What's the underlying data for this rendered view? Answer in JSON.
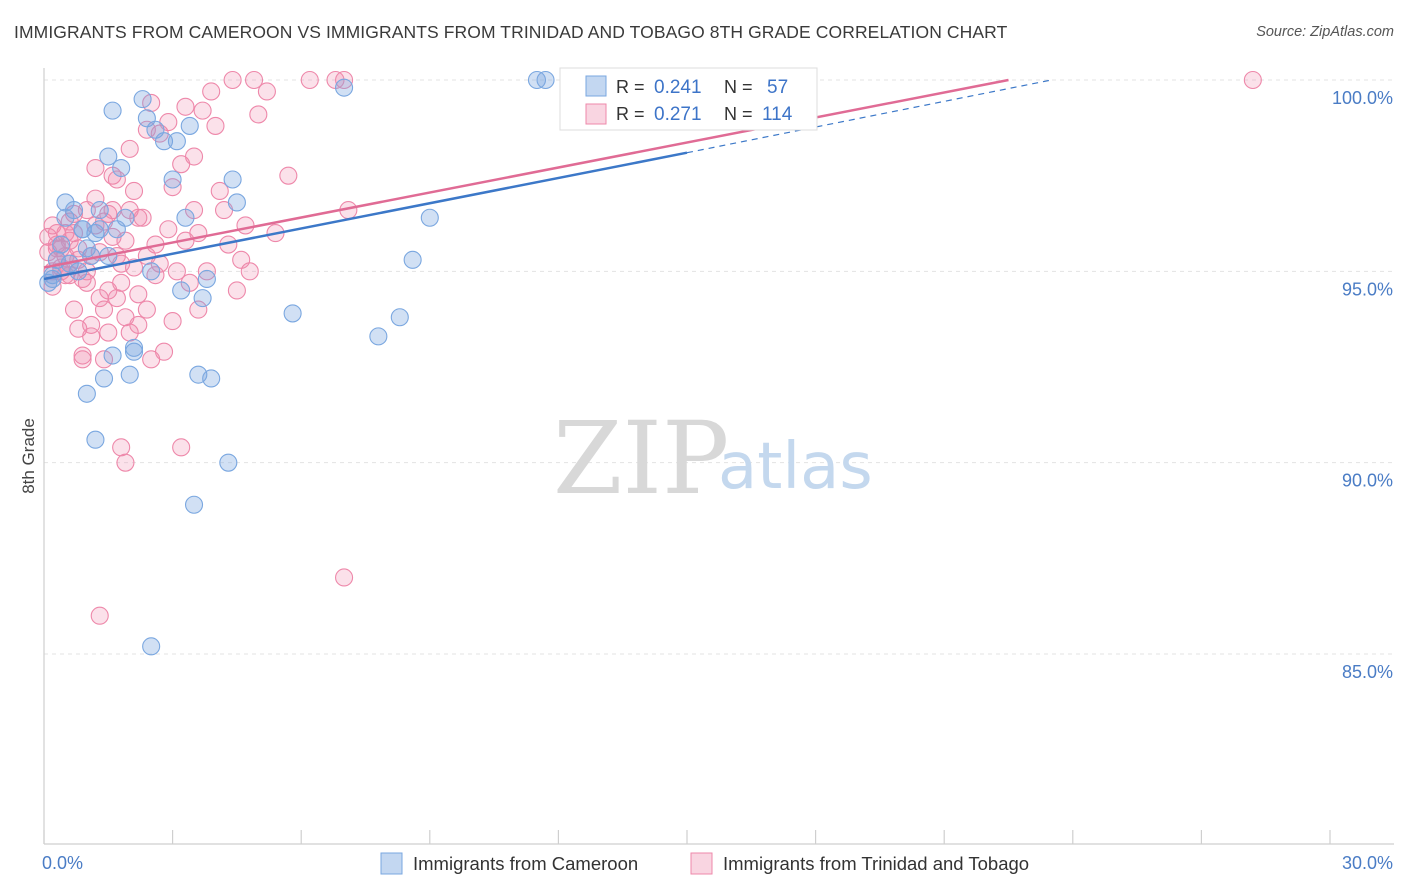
{
  "title": "IMMIGRANTS FROM CAMEROON VS IMMIGRANTS FROM TRINIDAD AND TOBAGO 8TH GRADE CORRELATION CHART",
  "source": "Source: ZipAtlas.com",
  "watermark": {
    "zip": "ZIP",
    "atlas": "atlas"
  },
  "colors": {
    "blue": "#7aa7e0",
    "blue_fill": "rgba(122,167,224,0.35)",
    "blue_line": "#3c78c8",
    "pink": "#ee88aa",
    "pink_fill": "rgba(238,136,170,0.25)",
    "pink_line": "#e06b95",
    "grid": "#e3e3e3",
    "tick_label": "#4a7cc5"
  },
  "legend": {
    "r_label": "R =",
    "n_label": "N =",
    "series": [
      {
        "r": "0.241",
        "n": "57"
      },
      {
        "r": "0.271",
        "n": "114"
      }
    ]
  },
  "chart_data": {
    "type": "scatter",
    "title": "IMMIGRANTS FROM CAMEROON VS IMMIGRANTS FROM TRINIDAD AND TOBAGO 8TH GRADE CORRELATION CHART",
    "xlabel": "",
    "ylabel": "8th Grade",
    "xlim": [
      0,
      30
    ],
    "ylim": [
      80.5,
      100.5
    ],
    "x_tick_labels": [
      "0.0%",
      "30.0%"
    ],
    "y_ticks": [
      85,
      90,
      95,
      100
    ],
    "y_tick_labels": [
      "85.0%",
      "90.0%",
      "95.0%",
      "100.0%"
    ],
    "grid": "horizontal dashed",
    "series": [
      {
        "name": "Immigrants from Cameroon",
        "trend": {
          "x0": 0,
          "y0": 94.8,
          "x1": 15.0,
          "y1": 98.1,
          "dash_to_x": 23.5,
          "dash_to_y": 100.0
        },
        "points": [
          [
            0.1,
            94.7
          ],
          [
            0.2,
            94.9
          ],
          [
            0.3,
            95.3
          ],
          [
            0.4,
            95.7
          ],
          [
            0.5,
            96.4
          ],
          [
            0.5,
            96.8
          ],
          [
            0.6,
            95.2
          ],
          [
            0.7,
            96.6
          ],
          [
            0.8,
            95.0
          ],
          [
            0.9,
            96.1
          ],
          [
            1.0,
            95.6
          ],
          [
            1.1,
            95.4
          ],
          [
            1.2,
            96.0
          ],
          [
            1.3,
            96.1
          ],
          [
            1.4,
            92.2
          ],
          [
            1.5,
            98.0
          ],
          [
            1.6,
            92.8
          ],
          [
            1.7,
            96.1
          ],
          [
            1.8,
            97.7
          ],
          [
            1.9,
            96.4
          ],
          [
            2.0,
            92.3
          ],
          [
            2.1,
            92.9
          ],
          [
            2.3,
            99.5
          ],
          [
            2.4,
            99.0
          ],
          [
            2.5,
            95.0
          ],
          [
            2.6,
            98.7
          ],
          [
            2.8,
            98.4
          ],
          [
            3.0,
            97.4
          ],
          [
            3.1,
            98.4
          ],
          [
            3.2,
            94.5
          ],
          [
            3.3,
            96.4
          ],
          [
            3.4,
            98.8
          ],
          [
            3.6,
            92.3
          ],
          [
            3.7,
            94.3
          ],
          [
            3.8,
            94.8
          ],
          [
            3.9,
            92.2
          ],
          [
            4.3,
            90.0
          ],
          [
            4.4,
            97.4
          ],
          [
            4.5,
            96.8
          ],
          [
            3.5,
            88.9
          ],
          [
            5.8,
            93.9
          ],
          [
            7.0,
            99.8
          ],
          [
            7.8,
            93.3
          ],
          [
            8.3,
            93.8
          ],
          [
            8.6,
            95.3
          ],
          [
            9.0,
            96.4
          ],
          [
            11.5,
            100.0
          ],
          [
            11.7,
            100.0
          ],
          [
            1.2,
            90.6
          ],
          [
            1.0,
            91.8
          ],
          [
            2.5,
            85.2
          ],
          [
            1.6,
            99.2
          ],
          [
            1.3,
            96.6
          ],
          [
            2.1,
            93.0
          ],
          [
            0.9,
            96.1
          ],
          [
            1.5,
            95.4
          ],
          [
            0.2,
            94.8
          ]
        ]
      },
      {
        "name": "Immigrants from Trinidad and Tobago",
        "trend": {
          "x0": 0,
          "y0": 95.1,
          "x1": 22.5,
          "y1": 100.0
        },
        "points": [
          [
            0.1,
            95.5
          ],
          [
            0.1,
            95.9
          ],
          [
            0.2,
            95.0
          ],
          [
            0.2,
            96.2
          ],
          [
            0.3,
            95.3
          ],
          [
            0.3,
            95.7
          ],
          [
            0.4,
            95.1
          ],
          [
            0.4,
            95.6
          ],
          [
            0.5,
            94.9
          ],
          [
            0.5,
            96.0
          ],
          [
            0.6,
            95.2
          ],
          [
            0.6,
            95.8
          ],
          [
            0.7,
            94.0
          ],
          [
            0.7,
            96.5
          ],
          [
            0.8,
            95.3
          ],
          [
            0.8,
            93.5
          ],
          [
            0.9,
            92.8
          ],
          [
            0.9,
            92.7
          ],
          [
            1.0,
            94.7
          ],
          [
            1.0,
            96.6
          ],
          [
            1.1,
            93.6
          ],
          [
            1.1,
            93.3
          ],
          [
            1.2,
            97.7
          ],
          [
            1.2,
            96.9
          ],
          [
            1.3,
            94.3
          ],
          [
            1.3,
            95.5
          ],
          [
            1.4,
            94.0
          ],
          [
            1.4,
            92.7
          ],
          [
            1.5,
            94.5
          ],
          [
            1.5,
            96.5
          ],
          [
            1.6,
            97.5
          ],
          [
            1.6,
            96.6
          ],
          [
            1.7,
            95.4
          ],
          [
            1.7,
            94.3
          ],
          [
            1.8,
            94.7
          ],
          [
            1.8,
            90.4
          ],
          [
            1.9,
            93.8
          ],
          [
            1.9,
            90.0
          ],
          [
            2.0,
            96.6
          ],
          [
            2.0,
            93.4
          ],
          [
            2.1,
            95.1
          ],
          [
            2.1,
            97.1
          ],
          [
            2.2,
            93.6
          ],
          [
            2.2,
            96.4
          ],
          [
            2.4,
            95.4
          ],
          [
            2.4,
            98.7
          ],
          [
            2.5,
            92.7
          ],
          [
            2.5,
            99.4
          ],
          [
            2.6,
            95.7
          ],
          [
            2.7,
            95.2
          ],
          [
            2.8,
            92.9
          ],
          [
            2.9,
            98.9
          ],
          [
            3.0,
            97.2
          ],
          [
            3.0,
            93.7
          ],
          [
            3.1,
            95.0
          ],
          [
            3.2,
            97.8
          ],
          [
            3.3,
            99.3
          ],
          [
            3.4,
            94.7
          ],
          [
            3.5,
            96.6
          ],
          [
            3.6,
            94.0
          ],
          [
            3.7,
            99.2
          ],
          [
            3.8,
            95.0
          ],
          [
            3.9,
            99.7
          ],
          [
            4.0,
            98.8
          ],
          [
            4.1,
            97.1
          ],
          [
            4.2,
            96.6
          ],
          [
            4.3,
            95.7
          ],
          [
            4.4,
            100.0
          ],
          [
            4.5,
            94.5
          ],
          [
            4.6,
            95.3
          ],
          [
            4.7,
            96.2
          ],
          [
            4.8,
            95.0
          ],
          [
            5.0,
            99.1
          ],
          [
            5.2,
            99.7
          ],
          [
            5.4,
            96.0
          ],
          [
            5.7,
            97.5
          ],
          [
            6.2,
            100.0
          ],
          [
            6.8,
            100.0
          ],
          [
            7.0,
            100.0
          ],
          [
            7.1,
            96.6
          ],
          [
            7.0,
            87.0
          ],
          [
            3.2,
            90.4
          ],
          [
            1.3,
            86.0
          ],
          [
            0.3,
            96.0
          ],
          [
            0.5,
            95.4
          ],
          [
            0.6,
            94.9
          ],
          [
            0.8,
            95.6
          ],
          [
            1.1,
            95.4
          ],
          [
            1.4,
            96.3
          ],
          [
            1.6,
            95.9
          ],
          [
            1.9,
            95.8
          ],
          [
            2.3,
            96.4
          ],
          [
            2.6,
            94.9
          ],
          [
            2.9,
            96.1
          ],
          [
            3.3,
            95.8
          ],
          [
            3.6,
            96.0
          ],
          [
            0.2,
            94.6
          ],
          [
            0.4,
            95.0
          ],
          [
            0.9,
            94.8
          ],
          [
            1.2,
            96.2
          ],
          [
            1.7,
            97.4
          ],
          [
            2.0,
            98.2
          ],
          [
            2.7,
            98.6
          ],
          [
            3.5,
            98.0
          ],
          [
            4.9,
            100.0
          ],
          [
            28.2,
            100.0
          ],
          [
            0.7,
            96.0
          ],
          [
            1.0,
            95.0
          ],
          [
            1.5,
            93.4
          ],
          [
            2.2,
            94.4
          ],
          [
            0.3,
            95.6
          ],
          [
            0.6,
            96.3
          ],
          [
            1.8,
            95.2
          ],
          [
            2.4,
            94.0
          ]
        ]
      }
    ]
  }
}
